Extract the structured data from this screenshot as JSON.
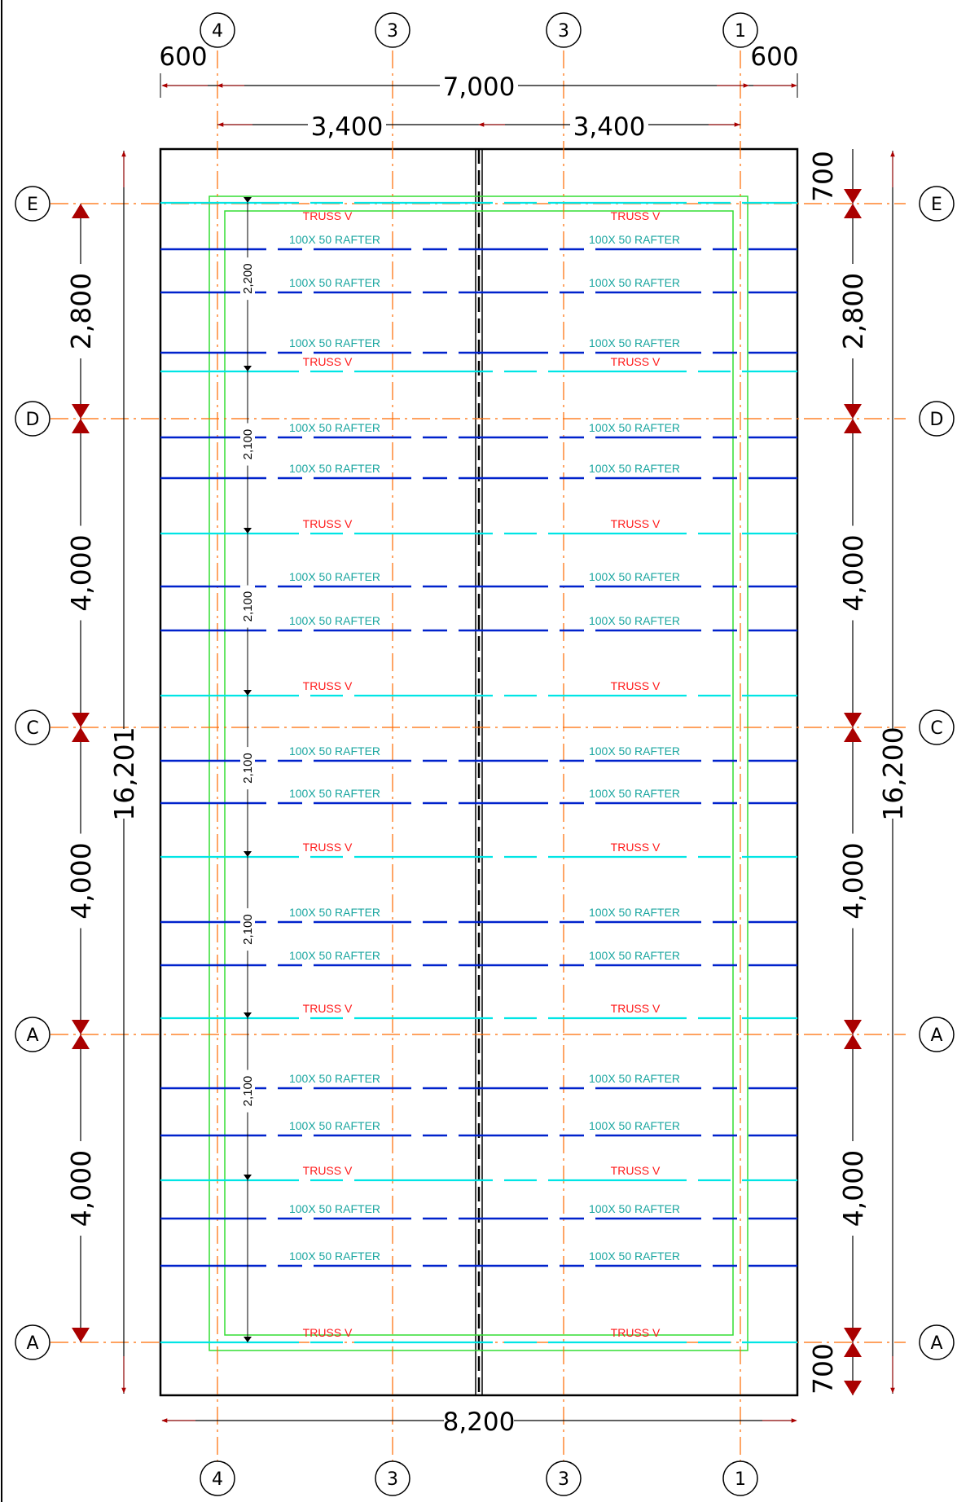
{
  "colors": {
    "background": "#ffffff",
    "outline": "#000000",
    "grid_line": "#ff6a00",
    "truss_line": "#00e5e5",
    "rafter_line": "#0022cc",
    "rafter_text": "#1aa6a0",
    "truss_text": "#ff1a1a",
    "wall_outline": "#33dd33",
    "arrow": "#aa0000"
  },
  "top_grid_labels": [
    "4",
    "3",
    "3",
    "1"
  ],
  "bottom_grid_labels": [
    "4",
    "3",
    "3",
    "1"
  ],
  "row_labels_left": [
    "E",
    "D",
    "C",
    "A",
    "A"
  ],
  "row_labels_right": [
    "E",
    "D",
    "C",
    "A",
    "A"
  ],
  "top_dims": {
    "overhang_left": "600",
    "overall": "7,000",
    "overhang_right": "600",
    "bay_left": "3,400",
    "bay_right": "3,400"
  },
  "bottom_dim": "8,200",
  "left_overall": "16,201",
  "right_overall": "16,200",
  "left_spans": [
    "2,800",
    "4,000",
    "4,000",
    "4,000"
  ],
  "right_spans": [
    "700",
    "2,800",
    "4,000",
    "4,000",
    "4,000",
    "700"
  ],
  "truss_spacings": [
    "2,200",
    "2,100",
    "2,100",
    "2,100",
    "2,100",
    "2,100"
  ],
  "truss_label": "TRUSS V",
  "rafter_label": "100X 50 RAFTER"
}
